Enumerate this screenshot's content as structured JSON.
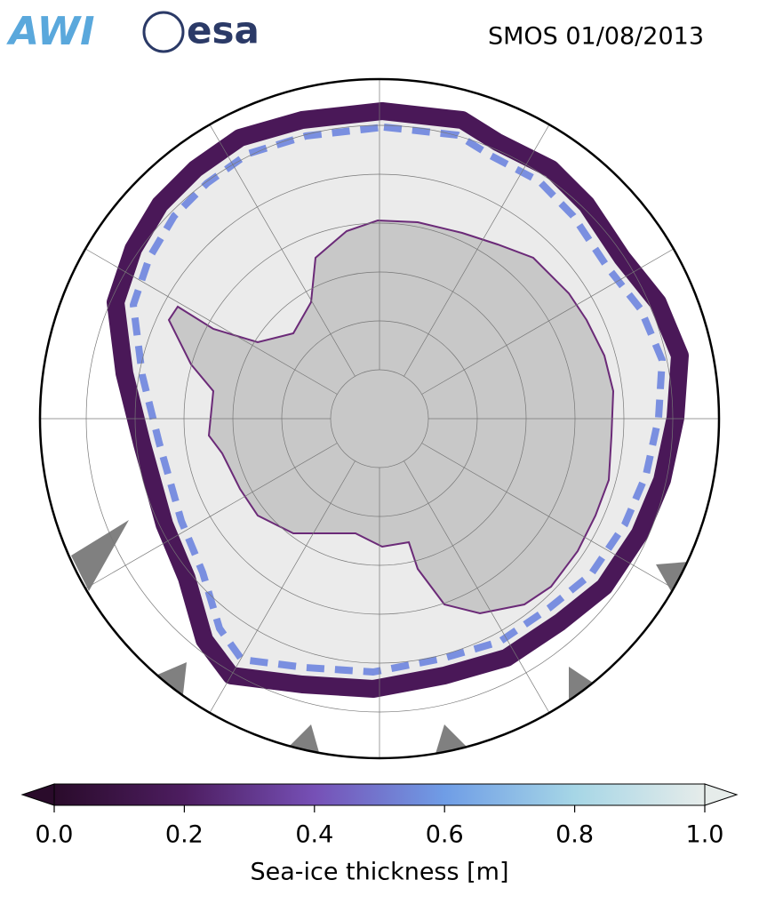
{
  "header": {
    "logos": [
      "AWI",
      "esa"
    ],
    "title": "SMOS 01/08/2013"
  },
  "colorbar": {
    "label": "Sea-ice thickness [m]",
    "lim": [
      0,
      1
    ],
    "ticks": [
      {
        "value": 0,
        "label": "0.0"
      },
      {
        "value": 0.2,
        "label": "0.2"
      },
      {
        "value": 0.4,
        "label": "0.4"
      },
      {
        "value": 0.6,
        "label": "0.6"
      },
      {
        "value": 0.8,
        "label": "0.8"
      },
      {
        "value": 1,
        "label": "1.0"
      }
    ],
    "colors": [
      "#2a0b2b",
      "#4d1d60",
      "#7650b6",
      "#6f9de6",
      "#a6d6e6",
      "#e6ecea"
    ]
  }
}
